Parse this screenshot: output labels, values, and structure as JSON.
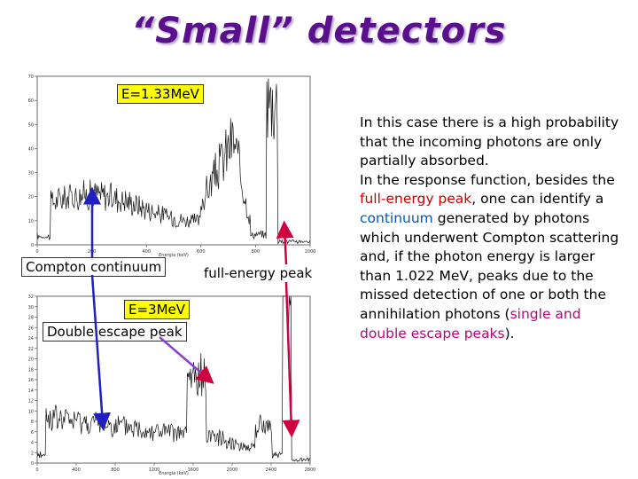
{
  "title": "“Small” detectors",
  "labels": {
    "energy_top": "E=1.33MeV",
    "energy_bottom": "E=3MeV",
    "compton": "Compton continuum",
    "full_energy": "full-energy peak",
    "double_escape": "Double escape peak"
  },
  "top_plot": {
    "y_ticks": [
      "0",
      "10",
      "20",
      "30",
      "40",
      "50",
      "60",
      "70"
    ],
    "x_ticks": [
      "0",
      "200",
      "400",
      "600",
      "800",
      "1000"
    ],
    "x_label": "Energia (keV)"
  },
  "bottom_plot": {
    "y_ticks": [
      "0",
      "2",
      "4",
      "6",
      "8",
      "10",
      "12",
      "14",
      "16",
      "18",
      "20",
      "22",
      "24",
      "26",
      "28",
      "30",
      "32"
    ],
    "x_ticks": [
      "0",
      "400",
      "800",
      "1200",
      "1600",
      "2000",
      "2400",
      "2800"
    ],
    "x_label": "Energia (keV)"
  },
  "paragraph": {
    "p1": "In this case there is a high probability that the incoming photons are only partially absorbed.",
    "p2_a": "In the response function, besides the ",
    "p2_full": "full-energy peak",
    "p2_b": ", one can identify a ",
    "p2_cont": "continuum",
    "p2_c": " generated by photons which underwent Compton scattering and, if the photon energy is larger than 1.022 MeV, peaks due to the missed detection of one or both the annihilation photons (",
    "p2_escape": "single and double escape peaks",
    "p2_d": ")."
  },
  "colors": {
    "title": "#5a0f8c",
    "arrow_blue": "#2020c0",
    "arrow_red": "#d00040",
    "label_yellow": "#ffff00"
  }
}
